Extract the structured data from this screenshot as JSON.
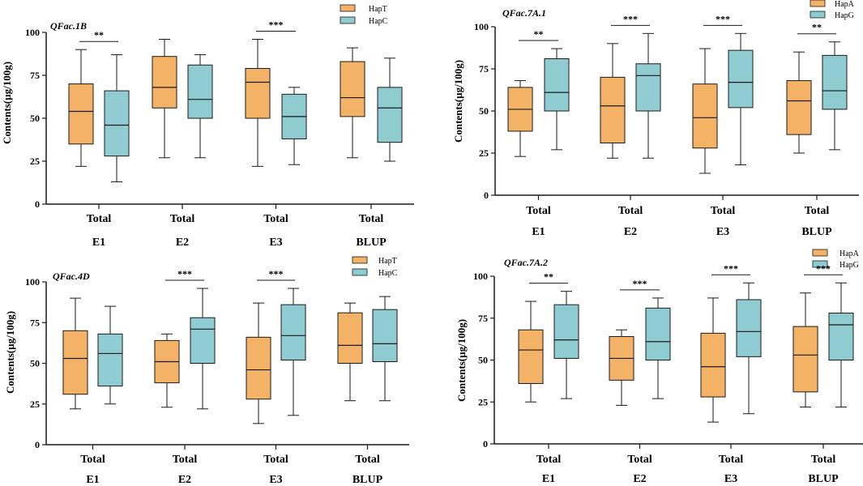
{
  "figure": {
    "name": "boxplot-grid"
  },
  "colors": {
    "hap1": "#F4B266",
    "hap2": "#8ECCD2",
    "stroke": "#1a1a1a"
  },
  "chart_data": [
    {
      "type": "box",
      "title": "QFac.1B",
      "ylabel": "Contents(µg/100g)",
      "ylim": [
        0,
        100
      ],
      "yticks": [
        0,
        25,
        50,
        75,
        100
      ],
      "legend": [
        "HapT",
        "HapC"
      ],
      "group_labels": [
        "Total",
        "Total",
        "Total",
        "Total"
      ],
      "env_labels": [
        "E1",
        "E2",
        "E3",
        "BLUP"
      ],
      "significance": [
        "**",
        "",
        "***",
        ""
      ],
      "boxes": [
        [
          {
            "min": 22,
            "q1": 35,
            "median": 54,
            "q3": 70,
            "max": 90
          },
          {
            "min": 13,
            "q1": 28,
            "median": 46,
            "q3": 66,
            "max": 87
          }
        ],
        [
          {
            "min": 27,
            "q1": 56,
            "median": 68,
            "q3": 86,
            "max": 96
          },
          {
            "min": 27,
            "q1": 50,
            "median": 61,
            "q3": 81,
            "max": 87
          }
        ],
        [
          {
            "min": 22,
            "q1": 50,
            "median": 71,
            "q3": 79,
            "max": 96
          },
          {
            "min": 23,
            "q1": 38,
            "median": 51,
            "q3": 64,
            "max": 68
          }
        ],
        [
          {
            "min": 27,
            "q1": 51,
            "median": 62,
            "q3": 83,
            "max": 91
          },
          {
            "min": 25,
            "q1": 36,
            "median": 56,
            "q3": 68,
            "max": 85
          }
        ]
      ]
    },
    {
      "type": "box",
      "title": "QFac.7A.1",
      "ylabel": "Contents(µg/100g)",
      "ylim": [
        0,
        100
      ],
      "yticks": [
        0,
        25,
        50,
        75,
        100
      ],
      "legend": [
        "HapA",
        "HapG"
      ],
      "group_labels": [
        "Total",
        "Total",
        "Total",
        "Total"
      ],
      "env_labels": [
        "E1",
        "E2",
        "E3",
        "BLUP"
      ],
      "significance": [
        "**",
        "***",
        "***",
        "**"
      ],
      "boxes": [
        [
          {
            "min": 23,
            "q1": 38,
            "median": 51,
            "q3": 64,
            "max": 68
          },
          {
            "min": 27,
            "q1": 50,
            "median": 61,
            "q3": 81,
            "max": 87
          }
        ],
        [
          {
            "min": 22,
            "q1": 31,
            "median": 53,
            "q3": 70,
            "max": 90
          },
          {
            "min": 22,
            "q1": 50,
            "median": 71,
            "q3": 78,
            "max": 96
          }
        ],
        [
          {
            "min": 13,
            "q1": 28,
            "median": 46,
            "q3": 66,
            "max": 87
          },
          {
            "min": 18,
            "q1": 52,
            "median": 67,
            "q3": 86,
            "max": 96
          }
        ],
        [
          {
            "min": 25,
            "q1": 36,
            "median": 56,
            "q3": 68,
            "max": 85
          },
          {
            "min": 27,
            "q1": 51,
            "median": 62,
            "q3": 83,
            "max": 91
          }
        ]
      ]
    },
    {
      "type": "box",
      "title": "QFac.4D",
      "ylabel": "Contents(µg/100g)",
      "ylim": [
        0,
        100
      ],
      "yticks": [
        0,
        25,
        50,
        75,
        100
      ],
      "legend": [
        "HapT",
        "HapC"
      ],
      "group_labels": [
        "Total",
        "Total",
        "Total",
        "Total"
      ],
      "env_labels": [
        "E1",
        "E2",
        "E3",
        "BLUP"
      ],
      "significance": [
        "",
        "***",
        "***",
        ""
      ],
      "boxes": [
        [
          {
            "min": 22,
            "q1": 31,
            "median": 53,
            "q3": 70,
            "max": 90
          },
          {
            "min": 25,
            "q1": 36,
            "median": 56,
            "q3": 68,
            "max": 85
          }
        ],
        [
          {
            "min": 23,
            "q1": 38,
            "median": 51,
            "q3": 64,
            "max": 68
          },
          {
            "min": 22,
            "q1": 50,
            "median": 71,
            "q3": 78,
            "max": 96
          }
        ],
        [
          {
            "min": 13,
            "q1": 28,
            "median": 46,
            "q3": 66,
            "max": 87
          },
          {
            "min": 18,
            "q1": 52,
            "median": 67,
            "q3": 86,
            "max": 96
          }
        ],
        [
          {
            "min": 27,
            "q1": 50,
            "median": 61,
            "q3": 81,
            "max": 87
          },
          {
            "min": 27,
            "q1": 51,
            "median": 62,
            "q3": 83,
            "max": 91
          }
        ]
      ]
    },
    {
      "type": "box",
      "title": "QFac.7A.2",
      "ylabel": "Contents(µg/100g)",
      "ylim": [
        0,
        100
      ],
      "yticks": [
        0,
        25,
        50,
        75,
        100
      ],
      "legend": [
        "HapA",
        "HapG"
      ],
      "group_labels": [
        "Total",
        "Total",
        "Total",
        "Total"
      ],
      "env_labels": [
        "E1",
        "E2",
        "E3",
        "BLUP"
      ],
      "significance": [
        "**",
        "***",
        "***",
        "***"
      ],
      "boxes": [
        [
          {
            "min": 25,
            "q1": 36,
            "median": 56,
            "q3": 68,
            "max": 85
          },
          {
            "min": 27,
            "q1": 51,
            "median": 62,
            "q3": 83,
            "max": 91
          }
        ],
        [
          {
            "min": 23,
            "q1": 38,
            "median": 51,
            "q3": 64,
            "max": 68
          },
          {
            "min": 27,
            "q1": 50,
            "median": 61,
            "q3": 81,
            "max": 87
          }
        ],
        [
          {
            "min": 13,
            "q1": 28,
            "median": 46,
            "q3": 66,
            "max": 87
          },
          {
            "min": 18,
            "q1": 52,
            "median": 67,
            "q3": 86,
            "max": 96
          }
        ],
        [
          {
            "min": 22,
            "q1": 31,
            "median": 53,
            "q3": 70,
            "max": 90
          },
          {
            "min": 22,
            "q1": 50,
            "median": 71,
            "q3": 78,
            "max": 96
          }
        ]
      ]
    }
  ]
}
